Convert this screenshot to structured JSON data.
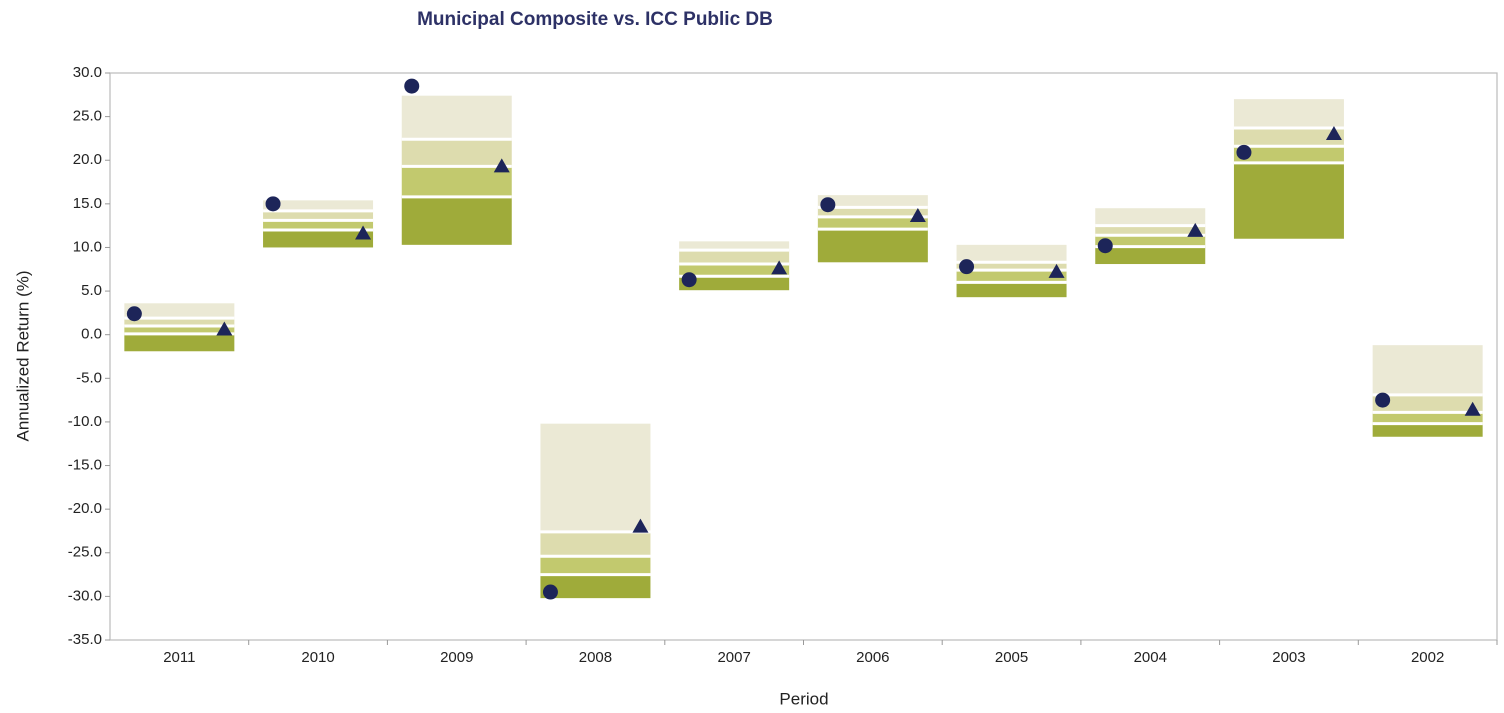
{
  "chart_data": {
    "type": "floating_range",
    "title": "Municipal Composite vs. ICC Public DB",
    "x_label": "Period",
    "y_label": "Annualized Return (%)",
    "categories": [
      "2011",
      "2010",
      "2009",
      "2008",
      "2007",
      "2006",
      "2005",
      "2004",
      "2003",
      "2002"
    ],
    "ranges": [
      [
        3.6,
        1.9,
        1.0,
        0.1,
        -1.9
      ],
      [
        15.4,
        14.2,
        13.1,
        12.0,
        10.0
      ],
      [
        27.4,
        22.4,
        19.3,
        15.8,
        10.3
      ],
      [
        -10.2,
        -22.6,
        -25.4,
        -27.5,
        -30.2
      ],
      [
        10.7,
        9.7,
        8.1,
        6.7,
        5.1
      ],
      [
        16.0,
        14.6,
        13.5,
        12.1,
        8.3
      ],
      [
        10.3,
        8.3,
        7.4,
        6.0,
        4.3
      ],
      [
        14.5,
        12.5,
        11.4,
        10.1,
        8.1
      ],
      [
        27.0,
        23.7,
        21.6,
        19.7,
        11.0
      ],
      [
        -1.2,
        -6.9,
        -8.9,
        -10.2,
        -11.7
      ]
    ],
    "range_colors": [
      "#ebe9d5",
      "#dddcae",
      "#c2c96e",
      "#9fab3a"
    ],
    "series": [
      {
        "marker": "circle",
        "color": "#1d2559",
        "values": [
          2.4,
          15.0,
          28.5,
          -29.5,
          6.3,
          14.9,
          7.8,
          10.2,
          20.9,
          -7.5
        ]
      },
      {
        "marker": "triangle",
        "color": "#1d2559",
        "values": [
          0.6,
          11.6,
          19.3,
          -22.0,
          7.6,
          13.6,
          7.2,
          11.9,
          23.0,
          -8.6
        ]
      }
    ],
    "ylim": [
      -35,
      30
    ],
    "yticks": [
      {
        "value": -35,
        "label": "-35.0"
      },
      {
        "value": -30,
        "label": "-30.0"
      },
      {
        "value": -25,
        "label": "-25.0"
      },
      {
        "value": -20,
        "label": "-20.0"
      },
      {
        "value": -15,
        "label": "-15.0"
      },
      {
        "value": -10,
        "label": "-10.0"
      },
      {
        "value": -5,
        "label": "-5.0"
      },
      {
        "value": 0,
        "label": "0.0"
      },
      {
        "value": 5,
        "label": "5.0"
      },
      {
        "value": 10,
        "label": "10.0"
      },
      {
        "value": 15,
        "label": "15.0"
      },
      {
        "value": 20,
        "label": "20.0"
      },
      {
        "value": 25,
        "label": "25.0"
      },
      {
        "value": 30,
        "label": "30.0"
      }
    ]
  }
}
